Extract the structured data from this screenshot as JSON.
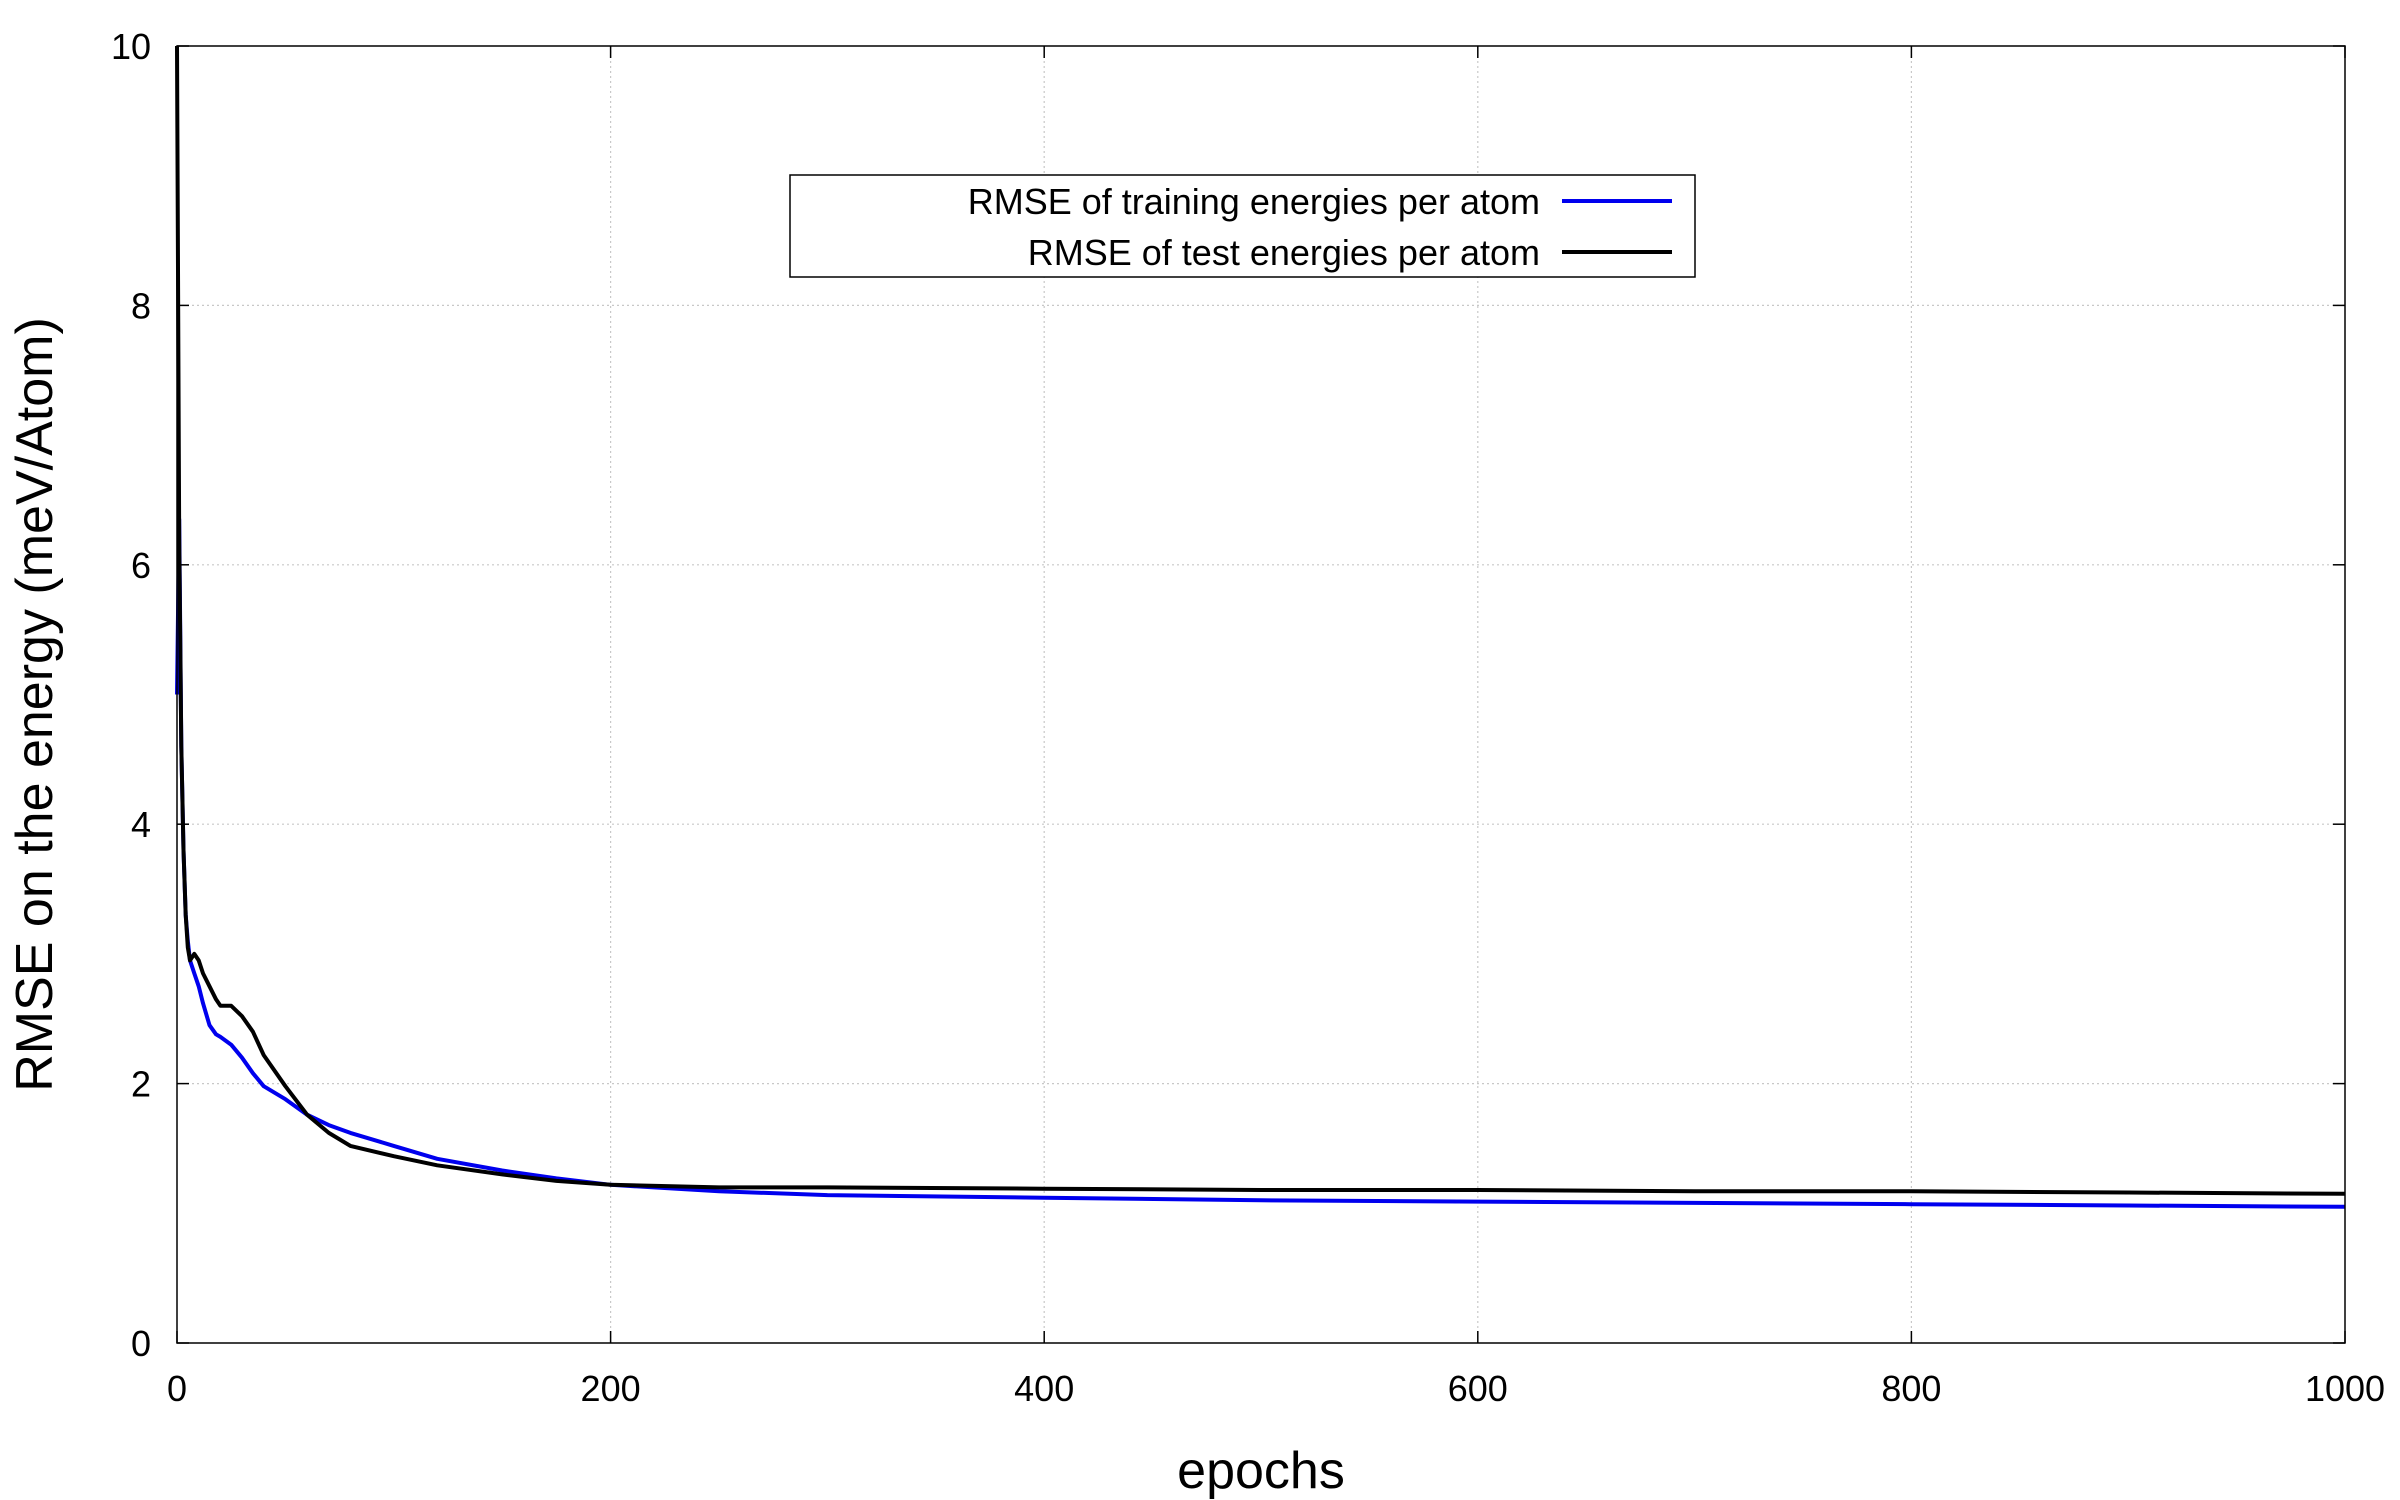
{
  "chart_data": {
    "type": "line",
    "title": "",
    "xlabel": "epochs",
    "ylabel": "RMSE on the energy (meV/Atom)",
    "xlim": [
      0,
      1000
    ],
    "ylim": [
      0,
      10
    ],
    "xticks": [
      0,
      200,
      400,
      600,
      800,
      1000
    ],
    "yticks": [
      0,
      2,
      4,
      6,
      8,
      10
    ],
    "xtick_labels": [
      "0",
      "200",
      "400",
      "600",
      "800",
      "1000"
    ],
    "ytick_labels": [
      "0",
      "2",
      "4",
      "6",
      "8",
      "10"
    ],
    "grid": true,
    "legend_position": "top-center",
    "series": [
      {
        "name": "RMSE of training energies per atom",
        "color": "#0000ee",
        "x": [
          0,
          1,
          2,
          3,
          4,
          5,
          6,
          8,
          10,
          12,
          15,
          18,
          20,
          25,
          30,
          35,
          40,
          50,
          60,
          70,
          80,
          100,
          120,
          150,
          175,
          200,
          250,
          300,
          400,
          500,
          600,
          700,
          800,
          900,
          1000
        ],
        "y": [
          5.0,
          6.35,
          4.6,
          3.8,
          3.3,
          3.1,
          2.95,
          2.85,
          2.75,
          2.62,
          2.45,
          2.38,
          2.36,
          2.3,
          2.2,
          2.08,
          1.98,
          1.88,
          1.76,
          1.68,
          1.62,
          1.52,
          1.42,
          1.33,
          1.27,
          1.22,
          1.17,
          1.14,
          1.12,
          1.1,
          1.09,
          1.08,
          1.07,
          1.06,
          1.05
        ]
      },
      {
        "name": "RMSE of test energies per atom",
        "color": "#000000",
        "x": [
          0,
          1,
          2,
          3,
          4,
          5,
          6,
          8,
          10,
          12,
          15,
          18,
          20,
          25,
          30,
          35,
          40,
          50,
          60,
          70,
          80,
          100,
          120,
          150,
          175,
          200,
          250,
          300,
          400,
          500,
          600,
          700,
          800,
          900,
          1000
        ],
        "y": [
          10.0,
          6.2,
          4.6,
          3.8,
          3.3,
          3.05,
          2.95,
          3.0,
          2.95,
          2.85,
          2.75,
          2.65,
          2.6,
          2.6,
          2.52,
          2.4,
          2.22,
          1.98,
          1.76,
          1.62,
          1.52,
          1.44,
          1.37,
          1.3,
          1.25,
          1.22,
          1.2,
          1.2,
          1.19,
          1.18,
          1.18,
          1.17,
          1.17,
          1.16,
          1.15
        ]
      }
    ]
  }
}
